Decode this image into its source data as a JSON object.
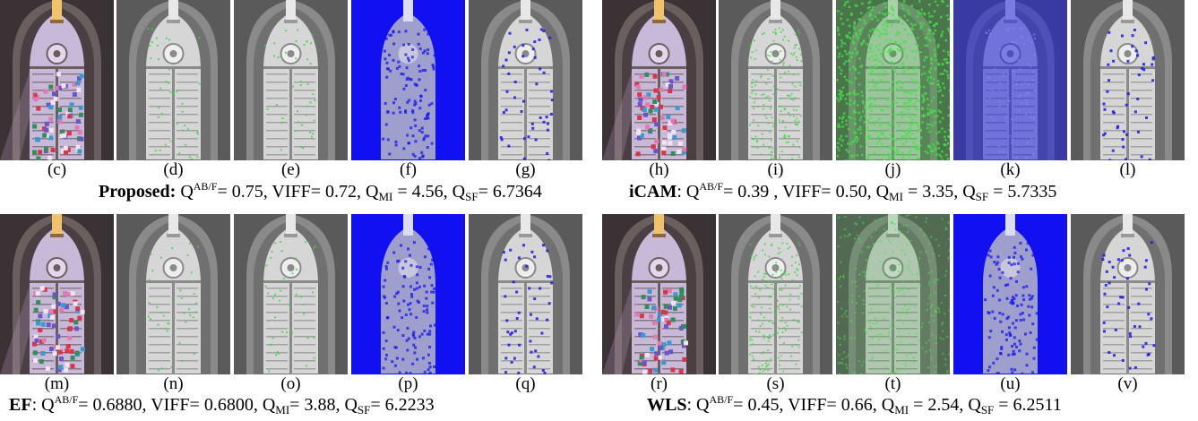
{
  "panels": [
    {
      "id": "proposed",
      "labels": [
        "(c)",
        "(d)",
        "(e)",
        "(f)",
        "(g)"
      ],
      "tiles": [
        "color",
        "gray-green-sparse",
        "gray-green-sparse",
        "blue-full",
        "gray-blue-spots"
      ],
      "caption": {
        "method": "Proposed:",
        "q_abf": "= 0.75,",
        "viff": "VIFF= 0.72,",
        "q_mi": "= 4.56,",
        "q_sf": "= 6.7364"
      }
    },
    {
      "id": "icam",
      "labels": [
        "(h)",
        "(i)",
        "(j)",
        "(k)",
        "(l)"
      ],
      "tiles": [
        "color",
        "gray-green-medium",
        "green-heavy",
        "blue-tint",
        "gray-blue-spots"
      ],
      "caption": {
        "method": "iCAM",
        "q_abf": "= 0.39 ,",
        "viff": "VIFF= 0.50,",
        "q_mi": "= 3.35,",
        "q_sf": "= 5.7335"
      }
    },
    {
      "id": "ef",
      "labels": [
        "(m)",
        "(n)",
        "(o)",
        "(p)",
        "(q)"
      ],
      "tiles": [
        "color",
        "gray-green-sparse",
        "gray-green-sparse",
        "blue-full",
        "gray-blue-spots"
      ],
      "caption": {
        "method": "EF",
        "q_abf": "= 0.6880,",
        "viff": "VIFF= 0.6800,",
        "q_mi": "= 3.88,",
        "q_sf": "= 6.2233"
      }
    },
    {
      "id": "wls",
      "labels": [
        "(r)",
        "(s)",
        "(t)",
        "(u)",
        "(v)"
      ],
      "tiles": [
        "color",
        "gray-green-medium",
        "green-tint",
        "blue-full",
        "gray-blue-spots"
      ],
      "caption": {
        "method": "WLS",
        "q_abf": "= 0.45,",
        "viff": "VIFF= 0.66,",
        "q_mi": "= 2.54,",
        "q_sf": "= 6.2511"
      }
    }
  ],
  "symbols": {
    "q": "Q",
    "abf_sup": "AB/F",
    "mi_sub": "MI",
    "sf_sub": "SF",
    "colon": ":"
  }
}
